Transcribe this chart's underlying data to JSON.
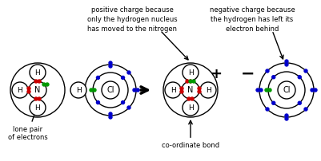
{
  "bg_color": "#ffffff",
  "electron_colors": {
    "red": "#cc0000",
    "green": "#009900",
    "blue": "#0000cc"
  },
  "text_color": "#000000",
  "annotations": {
    "lone_pair": "lone pair\nof electrons",
    "positive_charge": "positive charge because\nonly the hydrogen nucleus\nhas moved to the nitrogen",
    "negative_charge": "negative charge because\nthe hydrogen has left its\nelectron behind",
    "coordinate_bond": "co-ordinate bond"
  },
  "circle_lw": 1.0
}
